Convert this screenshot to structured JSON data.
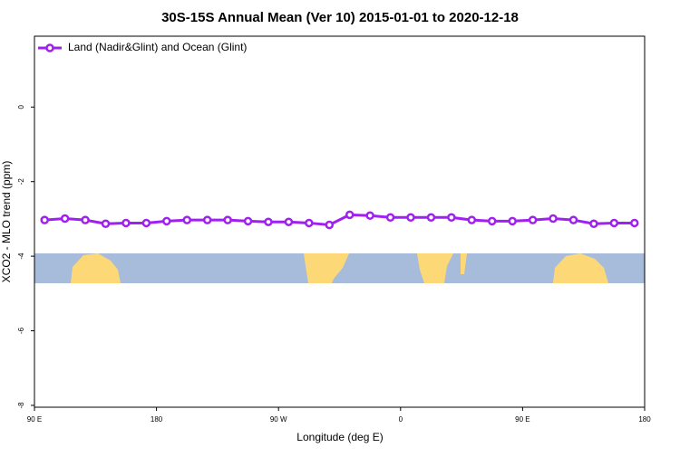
{
  "chart_data": {
    "type": "line",
    "title": "30S-15S Annual Mean (Ver 10)   2015-01-01 to 2020-12-18",
    "x_label": "Longitude (deg E)",
    "y_label": "XCO2 - MLO trend (ppm)",
    "x": [
      97.5,
      112.5,
      127.5,
      142.5,
      157.5,
      172.5,
      187.5,
      202.5,
      217.5,
      232.5,
      247.5,
      262.5,
      277.5,
      292.5,
      307.5,
      322.5,
      337.5,
      352.5,
      367.5,
      382.5,
      397.5,
      412.5,
      427.5,
      442.5,
      457.5,
      472.5,
      487.5,
      502.5,
      517.5,
      532.5
    ],
    "series": [
      {
        "name": "Land (Nadir&Glint) and Ocean (Glint)",
        "color": "#a020f0",
        "values": [
          -3.03,
          -2.99,
          -3.03,
          -3.13,
          -3.11,
          -3.11,
          -3.06,
          -3.03,
          -3.03,
          -3.03,
          -3.06,
          -3.08,
          -3.08,
          -3.11,
          -3.16,
          -2.89,
          -2.91,
          -2.96,
          -2.96,
          -2.96,
          -2.96,
          -3.03,
          -3.06,
          -3.06,
          -3.03,
          -2.99,
          -3.03,
          -3.13,
          -3.11,
          -3.11
        ]
      }
    ],
    "xlim": [
      90,
      540
    ],
    "xticks": [
      {
        "value": 90,
        "label": "90 E"
      },
      {
        "value": 180,
        "label": "180"
      },
      {
        "value": 270,
        "label": "90 W"
      },
      {
        "value": 360,
        "label": "0"
      },
      {
        "value": 450,
        "label": "90 E"
      },
      {
        "value": 540,
        "label": "180"
      }
    ],
    "ylim": [
      -8.05,
      1.9
    ],
    "yticks": [
      0,
      -2,
      -4,
      -6,
      -8
    ],
    "legend": "top-left"
  }
}
